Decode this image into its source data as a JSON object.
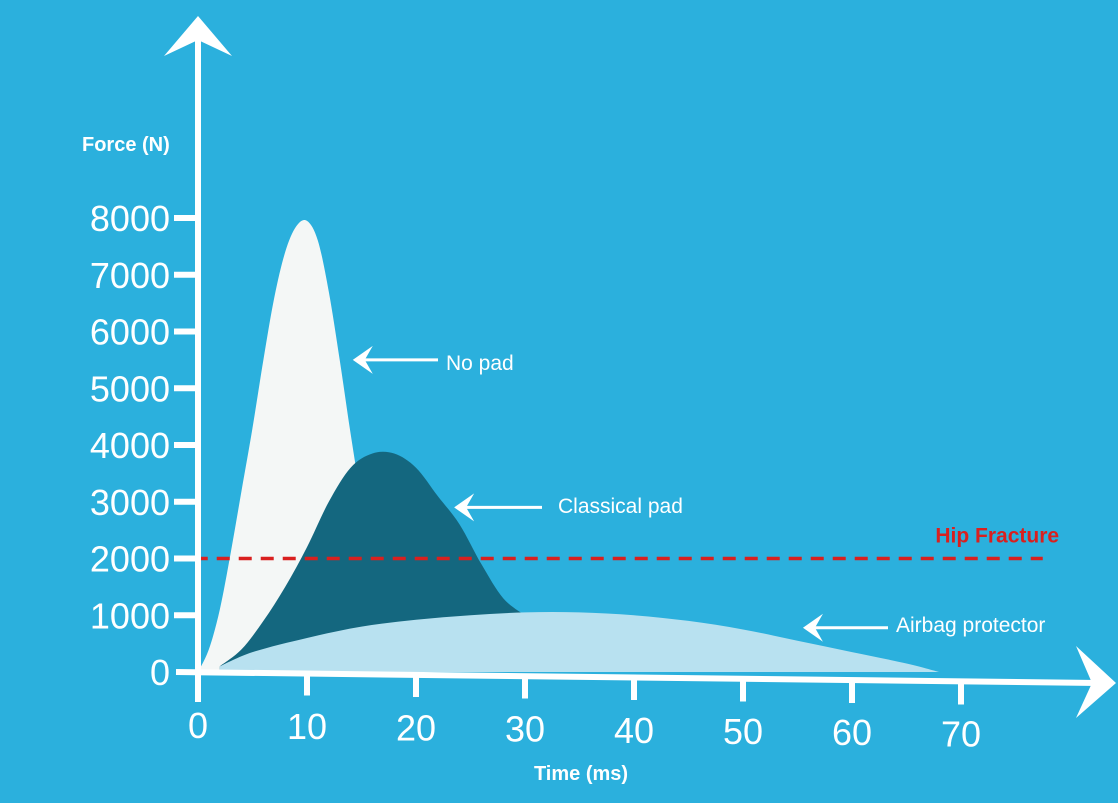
{
  "chart_data": {
    "type": "area",
    "xlabel": "Time (ms)",
    "ylabel": "Force (N)",
    "xlim": [
      0,
      70
    ],
    "ylim": [
      0,
      8000
    ],
    "x_ticks": [
      "0",
      "10",
      "20",
      "30",
      "40",
      "50",
      "60",
      "70"
    ],
    "y_ticks": [
      "0",
      "1000",
      "2000",
      "3000",
      "4000",
      "5000",
      "6000",
      "7000",
      "8000"
    ],
    "grid": false,
    "series": [
      {
        "name": "No pad",
        "color": "#f4f7f6",
        "x": [
          0,
          1,
          2,
          3,
          4,
          5,
          6,
          7,
          8,
          9,
          10,
          11,
          12,
          13,
          14,
          15,
          16,
          17
        ],
        "values": [
          0,
          400,
          1100,
          2100,
          3200,
          4300,
          5500,
          6600,
          7400,
          7850,
          7950,
          7600,
          6700,
          5500,
          4200,
          3000,
          1900,
          1000
        ]
      },
      {
        "name": "Classical pad",
        "color": "#14677f",
        "x": [
          2,
          4,
          6,
          8,
          10,
          12,
          14,
          16,
          18,
          20,
          22,
          24,
          26,
          28,
          30
        ],
        "values": [
          100,
          400,
          900,
          1500,
          2200,
          3000,
          3600,
          3850,
          3850,
          3600,
          3100,
          2600,
          1900,
          1300,
          1000
        ]
      },
      {
        "name": "Airbag protector",
        "color": "#b8e1f0",
        "x": [
          2,
          5,
          10,
          15,
          20,
          25,
          30,
          35,
          40,
          45,
          50,
          55,
          60,
          65,
          68
        ],
        "values": [
          100,
          350,
          600,
          800,
          920,
          1000,
          1050,
          1050,
          1000,
          900,
          750,
          550,
          350,
          150,
          0
        ]
      }
    ],
    "annotations": [
      {
        "text": "Hip Fracture",
        "y": 2000,
        "color": "#d9201f",
        "style": "dashed"
      }
    ]
  }
}
